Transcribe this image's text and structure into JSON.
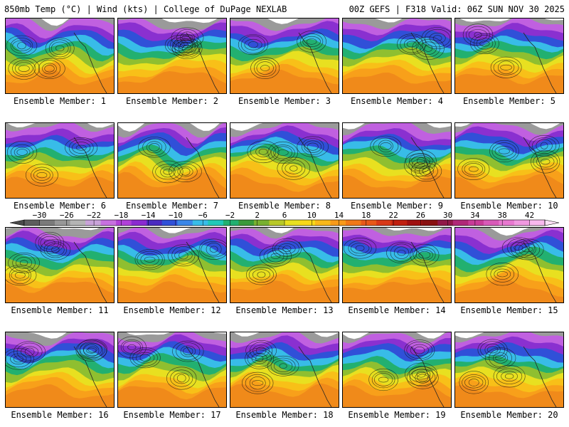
{
  "header": {
    "left": "850mb Temp (°C) | Wind (kts) | College of DuPage NEXLAB",
    "right": "00Z GEFS | F318 Valid: 06Z SUN NOV 30 2025"
  },
  "panels": [
    {
      "label": "Ensemble Member: 1"
    },
    {
      "label": "Ensemble Member: 2"
    },
    {
      "label": "Ensemble Member: 3"
    },
    {
      "label": "Ensemble Member: 4"
    },
    {
      "label": "Ensemble Member: 5"
    },
    {
      "label": "Ensemble Member: 6"
    },
    {
      "label": "Ensemble Member: 7"
    },
    {
      "label": "Ensemble Member: 8"
    },
    {
      "label": "Ensemble Member: 9"
    },
    {
      "label": "Ensemble Member: 10"
    },
    {
      "label": "Ensemble Member: 11"
    },
    {
      "label": "Ensemble Member: 12"
    },
    {
      "label": "Ensemble Member: 13"
    },
    {
      "label": "Ensemble Member: 14"
    },
    {
      "label": "Ensemble Member: 15"
    },
    {
      "label": "Ensemble Member: 16"
    },
    {
      "label": "Ensemble Member: 17"
    },
    {
      "label": "Ensemble Member: 18"
    },
    {
      "label": "Ensemble Member: 19"
    },
    {
      "label": "Ensemble Member: 20"
    }
  ],
  "colorbar": {
    "labels": [
      "−30",
      "−26",
      "−22",
      "−18",
      "−14",
      "−10",
      "−6",
      "−2",
      "2",
      "6",
      "10",
      "14",
      "18",
      "22",
      "26",
      "30",
      "34",
      "38",
      "42"
    ],
    "colors": [
      "#5d5d5d",
      "#7a7a7a",
      "#979797",
      "#b4b4b4",
      "#c9a3d9",
      "#c770e0",
      "#b040d8",
      "#8a2ad0",
      "#4a2ac0",
      "#3050d8",
      "#3a86e8",
      "#38bce8",
      "#20c8b8",
      "#22b070",
      "#3a9a3a",
      "#78b030",
      "#b8c828",
      "#e8e020",
      "#f8d818",
      "#f8b81a",
      "#f89a1a",
      "#f07818",
      "#e85818",
      "#d83818",
      "#c02010",
      "#a01010",
      "#881010",
      "#901848",
      "#b02878",
      "#c83c98",
      "#d85ab8",
      "#e878d0",
      "#f098e0",
      "#f8b8ee"
    ]
  }
}
